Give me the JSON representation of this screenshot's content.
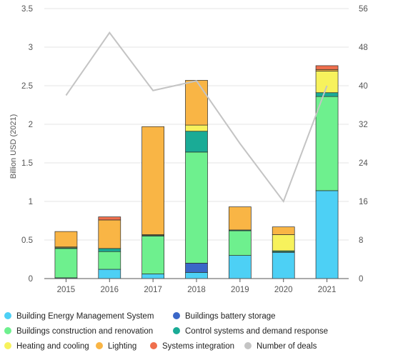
{
  "chart_data": {
    "type": "bar",
    "stacked": true,
    "categories": [
      "2015",
      "2016",
      "2017",
      "2018",
      "2019",
      "2020",
      "2021"
    ],
    "ylabel": "Billion USD (2021)",
    "ylim": [
      0,
      3.5
    ],
    "yticks": [
      "0",
      "0.5",
      "1",
      "1.5",
      "2",
      "2.5",
      "3",
      "3.5"
    ],
    "y2lim": [
      0,
      56
    ],
    "y2ticks": [
      "0",
      "8",
      "16",
      "24",
      "32",
      "40",
      "48",
      "56"
    ],
    "grid": true,
    "series": [
      {
        "name": "Building Energy Management System",
        "color": "#4dd0f5",
        "values": [
          0.01,
          0.12,
          0.06,
          0.08,
          0.3,
          0.34,
          1.14
        ]
      },
      {
        "name": "Buildings battery storage",
        "color": "#3a67c8",
        "values": [
          0.0,
          0.0,
          0.0,
          0.12,
          0.0,
          0.0,
          0.0
        ]
      },
      {
        "name": "Buildings construction and renovation",
        "color": "#6ef08e",
        "values": [
          0.38,
          0.23,
          0.49,
          1.44,
          0.32,
          0.01,
          1.22
        ]
      },
      {
        "name": "Control systems and demand response",
        "color": "#1aab96",
        "values": [
          0.01,
          0.04,
          0.01,
          0.27,
          0.01,
          0.01,
          0.05
        ]
      },
      {
        "name": "Heating and cooling",
        "color": "#f7f25c",
        "values": [
          0.01,
          0.0,
          0.01,
          0.08,
          0.0,
          0.21,
          0.28
        ]
      },
      {
        "name": "Lighting",
        "color": "#f9b545",
        "values": [
          0.2,
          0.37,
          1.4,
          0.58,
          0.3,
          0.1,
          0.02
        ]
      },
      {
        "name": "Systems integration",
        "color": "#ef6f4d",
        "values": [
          0.0,
          0.04,
          0.0,
          0.0,
          0.0,
          0.0,
          0.05
        ]
      }
    ],
    "line_series": {
      "name": "Number of deals",
      "color": "#c4c4c4",
      "axis": "right",
      "values": [
        38,
        51,
        39,
        41,
        28,
        16,
        40
      ]
    },
    "legend": [
      {
        "label": "Building Energy Management System",
        "color": "#4dd0f5",
        "icon": "circle"
      },
      {
        "label": "Buildings battery storage",
        "color": "#3a67c8",
        "icon": "circle"
      },
      {
        "label": "Buildings construction and renovation",
        "color": "#6ef08e",
        "icon": "circle"
      },
      {
        "label": "Control systems and demand response",
        "color": "#1aab96",
        "icon": "circle"
      },
      {
        "label": "Heating and cooling",
        "color": "#f7f25c",
        "icon": "circle"
      },
      {
        "label": "Lighting",
        "color": "#f9b545",
        "icon": "circle"
      },
      {
        "label": "Systems integration",
        "color": "#ef6f4d",
        "icon": "circle"
      },
      {
        "label": "Number of deals",
        "color": "#c4c4c4",
        "icon": "circle"
      }
    ],
    "legend_position": "bottom"
  }
}
